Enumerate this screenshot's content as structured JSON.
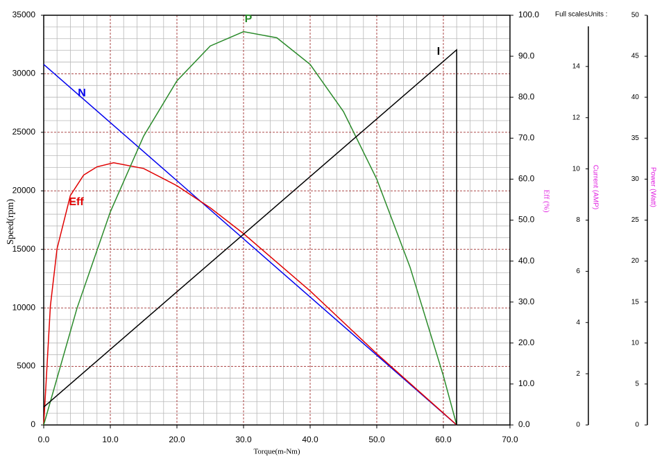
{
  "chart_data": {
    "type": "line",
    "corner_note": "Full scalesUnits :",
    "x_label": "Torque(m-Nm)",
    "y_label": "Speed(rpm)",
    "y2_label": "Eff (%)",
    "y3_label": "Current (AMP)",
    "y4_label": "Power (Watt)",
    "grid": true,
    "xlim": [
      0,
      70
    ],
    "xticks": [
      {
        "value": 0,
        "label": "0.0"
      },
      {
        "value": 10,
        "label": "10.0"
      },
      {
        "value": 20,
        "label": "20.0"
      },
      {
        "value": 30,
        "label": "30.0"
      },
      {
        "value": 40,
        "label": "40.0"
      },
      {
        "value": 50,
        "label": "50.0"
      },
      {
        "value": 60,
        "label": "60.0"
      },
      {
        "value": 70,
        "label": "70.0"
      }
    ],
    "ylim": [
      0,
      35000
    ],
    "yticks": [
      0,
      5000,
      10000,
      15000,
      20000,
      25000,
      30000,
      35000
    ],
    "y2lim": [
      0,
      100
    ],
    "y2ticks": [
      {
        "value": 0,
        "label": "0.0"
      },
      {
        "value": 10,
        "label": "10.0"
      },
      {
        "value": 20,
        "label": "20.0"
      },
      {
        "value": 30,
        "label": "30.0"
      },
      {
        "value": 40,
        "label": "40.0"
      },
      {
        "value": 50,
        "label": "50.0"
      },
      {
        "value": 60,
        "label": "60.0"
      },
      {
        "value": 70,
        "label": "70.0"
      },
      {
        "value": 80,
        "label": "80.0"
      },
      {
        "value": 90,
        "label": "90.0"
      },
      {
        "value": 100,
        "label": "100.0"
      }
    ],
    "y3lim": [
      0,
      16
    ],
    "y3ticks": [
      0,
      2,
      4,
      6,
      8,
      10,
      12,
      14
    ],
    "y4lim": [
      0,
      50
    ],
    "y4ticks": [
      0,
      5,
      10,
      15,
      20,
      25,
      30,
      35,
      40,
      45,
      50
    ],
    "series": [
      {
        "name": "N",
        "color": "#0000ee",
        "axis": "y",
        "x": [
          0,
          62
        ],
        "values": [
          30800,
          0
        ]
      },
      {
        "name": "Eff",
        "color": "#e00000",
        "axis": "y2",
        "x": [
          0,
          1,
          2,
          4,
          6,
          8,
          10.5,
          15,
          20,
          25,
          30,
          40,
          50,
          62
        ],
        "values": [
          0,
          29,
          43,
          56,
          61,
          63,
          64,
          62.6,
          58.4,
          53,
          46.7,
          32.7,
          17.4,
          0
        ]
      },
      {
        "name": "P",
        "color": "#2a8a2a",
        "axis": "y4",
        "x": [
          0,
          5,
          10,
          15,
          20,
          25,
          30,
          35,
          40,
          45,
          50,
          55,
          60,
          62
        ],
        "values": [
          0,
          14.25,
          26,
          35.25,
          42,
          46.25,
          48,
          47.25,
          44,
          38.25,
          30,
          19.25,
          6,
          0
        ]
      },
      {
        "name": "I",
        "color": "#000000",
        "axis": "y3",
        "x": [
          0,
          62,
          62
        ],
        "values": [
          0.7,
          14.65,
          0
        ]
      }
    ]
  }
}
